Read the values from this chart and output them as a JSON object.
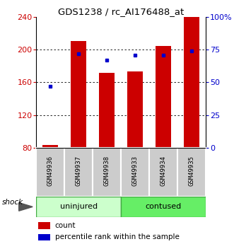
{
  "title": "GDS1238 / rc_AI176488_at",
  "categories": [
    "GSM49936",
    "GSM49937",
    "GSM49938",
    "GSM49933",
    "GSM49934",
    "GSM49935"
  ],
  "count_values": [
    83,
    211,
    172,
    173,
    205,
    240
  ],
  "percentile_values": [
    47,
    72,
    67,
    71,
    71,
    74
  ],
  "count_color": "#cc0000",
  "percentile_color": "#0000cc",
  "ylim_left": [
    80,
    240
  ],
  "ylim_right": [
    0,
    100
  ],
  "yticks_left": [
    80,
    120,
    160,
    200,
    240
  ],
  "yticks_right": [
    0,
    25,
    50,
    75,
    100
  ],
  "ytick_labels_right": [
    "0",
    "25",
    "50",
    "75",
    "100%"
  ],
  "left_tick_color": "#cc0000",
  "right_tick_color": "#0000cc",
  "uninjured_color": "#ccffcc",
  "contused_color": "#66ee66",
  "group_border_color": "#44aa44",
  "sample_box_color": "#cccccc",
  "legend_count": "count",
  "legend_percentile": "percentile rank within the sample"
}
